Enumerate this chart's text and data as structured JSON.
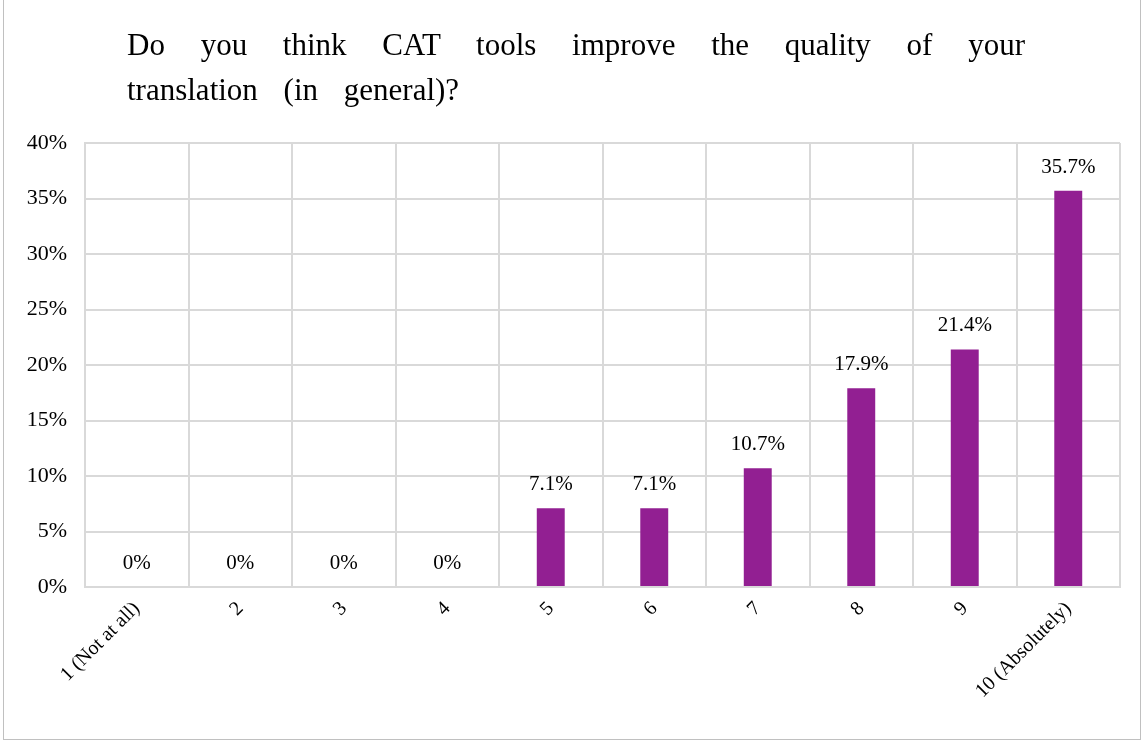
{
  "chart_data": {
    "type": "bar",
    "title": "Do you think CAT tools improve the quality of your translation (in general)?",
    "categories": [
      "1 (Not at all)",
      "2",
      "3",
      "4",
      "5",
      "6",
      "7",
      "8",
      "9",
      "10 (Absolutely)"
    ],
    "values": [
      0,
      0,
      0,
      0,
      7.1,
      7.1,
      10.7,
      17.9,
      21.4,
      35.7
    ],
    "color": "#921f92",
    "value_labels": [
      "0%",
      "0%",
      "0%",
      "0%",
      "7.1%",
      "7.1%",
      "10.7%",
      "17.9%",
      "21.4%",
      "35.7%"
    ],
    "ylim": [
      0,
      40
    ],
    "yticks": [
      {
        "value": 0,
        "label": "0%"
      },
      {
        "value": 5,
        "label": "5%"
      },
      {
        "value": 10,
        "label": "10%"
      },
      {
        "value": 15,
        "label": "15%"
      },
      {
        "value": 20,
        "label": "20%"
      },
      {
        "value": 25,
        "label": "25%"
      },
      {
        "value": 30,
        "label": "30%"
      },
      {
        "value": 35,
        "label": "35%"
      },
      {
        "value": 40,
        "label": "40%"
      }
    ],
    "grid": true
  }
}
